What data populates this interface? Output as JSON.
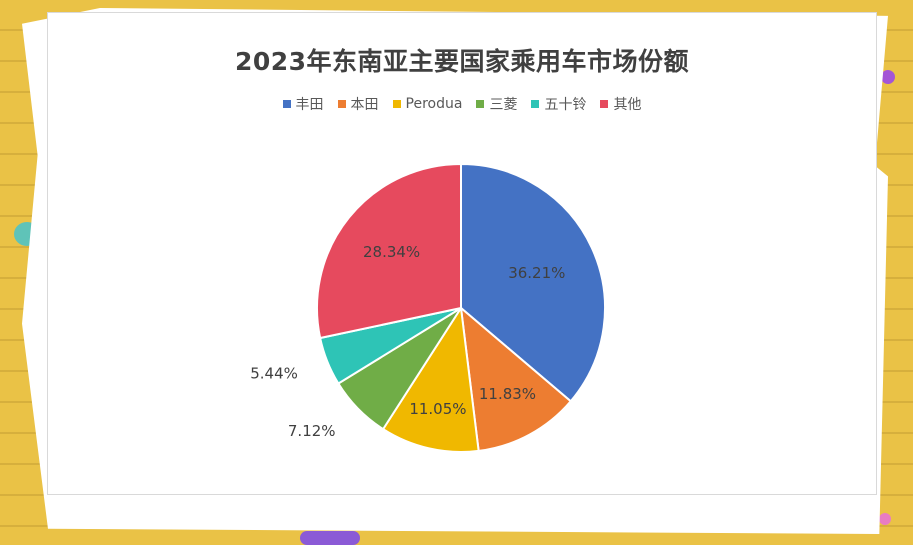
{
  "chart_data": {
    "type": "pie",
    "title": "2023年东南亚主要国家乘用车市场份额",
    "legend_position": "top",
    "slices": [
      {
        "name": "丰田",
        "value": 36.21,
        "label": "36.21%",
        "color": "#4472c4"
      },
      {
        "name": "本田",
        "value": 11.83,
        "label": "11.83%",
        "color": "#ed7d31"
      },
      {
        "name": "Perodua",
        "value": 11.05,
        "label": "11.05%",
        "color": "#f0b800"
      },
      {
        "name": "三菱",
        "value": 7.12,
        "label": "7.12%",
        "color": "#70ad47"
      },
      {
        "name": "五十铃",
        "value": 5.44,
        "label": "5.44%",
        "color": "#2ec4b6"
      },
      {
        "name": "其他",
        "value": 28.34,
        "label": "28.34%",
        "color": "#e64a5e"
      }
    ]
  }
}
